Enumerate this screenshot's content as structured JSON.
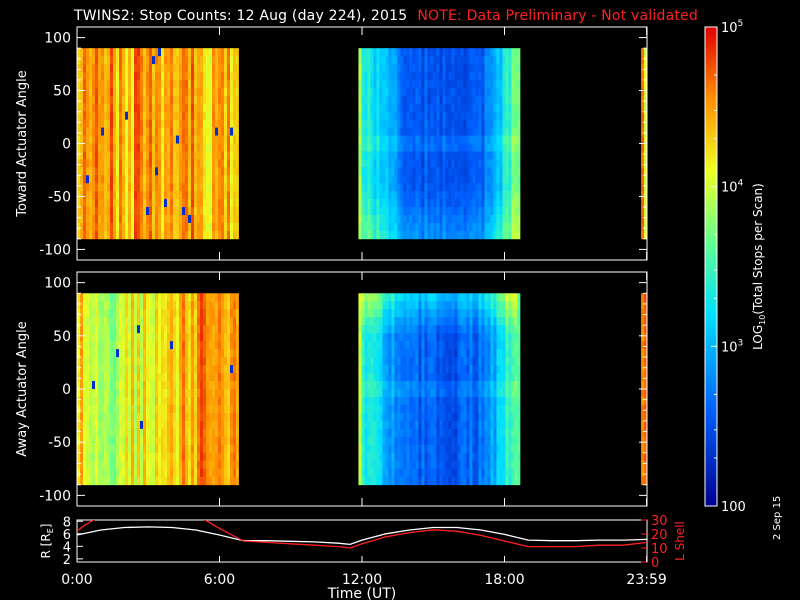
{
  "title": {
    "main": "TWINS2: Stop Counts: 12 Aug (day 224), 2015",
    "note": "NOTE: Data Preliminary - Not validated"
  },
  "side_stamp": "2 Sep 15",
  "colors": {
    "background": "#000000",
    "axis": "#ffffff",
    "note": "#ff2020",
    "r_trace": "#ffffff",
    "l_shell_trace": "#ff2020"
  },
  "chart_data": [
    {
      "type": "heatmap",
      "panel": "toward",
      "ylabel": "Toward Actuator Angle",
      "ylim": [
        -110,
        110
      ],
      "yticks": [
        100,
        50,
        0,
        -50,
        -100
      ],
      "ytick_labels": [
        "100",
        "50",
        "0",
        "-50",
        "-100"
      ],
      "xlim_hours": [
        0,
        24
      ],
      "data_segments_hours": [
        [
          0.0,
          6.8
        ],
        [
          11.85,
          18.65
        ],
        [
          23.75,
          24.0
        ]
      ],
      "angle_range": [
        -90,
        90
      ],
      "profile_level": [
        [
          0.0,
          0.82
        ],
        [
          0.5,
          0.8
        ],
        [
          1.0,
          0.84
        ],
        [
          1.5,
          0.81
        ],
        [
          2.0,
          0.78
        ],
        [
          2.5,
          0.83
        ],
        [
          3.0,
          0.8
        ],
        [
          3.5,
          0.82
        ],
        [
          4.0,
          0.79
        ],
        [
          4.5,
          0.83
        ],
        [
          5.0,
          0.8
        ],
        [
          5.5,
          0.78
        ],
        [
          6.0,
          0.8
        ],
        [
          6.5,
          0.76
        ],
        [
          6.8,
          0.72
        ],
        [
          11.85,
          0.6
        ],
        [
          12.0,
          0.45
        ],
        [
          12.5,
          0.4
        ],
        [
          13.0,
          0.32
        ],
        [
          13.5,
          0.25
        ],
        [
          14.0,
          0.2
        ],
        [
          15.0,
          0.16
        ],
        [
          16.0,
          0.16
        ],
        [
          17.0,
          0.2
        ],
        [
          17.5,
          0.3
        ],
        [
          18.0,
          0.45
        ],
        [
          18.65,
          0.62
        ],
        [
          23.75,
          0.8
        ],
        [
          24.0,
          0.78
        ]
      ]
    },
    {
      "type": "heatmap",
      "panel": "away",
      "ylabel": "Away Actuator Angle",
      "ylim": [
        -110,
        110
      ],
      "yticks": [
        100,
        50,
        0,
        -50,
        -100
      ],
      "ytick_labels": [
        "100",
        "50",
        "0",
        "-50",
        "-100"
      ],
      "xlim_hours": [
        0,
        24
      ],
      "data_segments_hours": [
        [
          0.0,
          6.8
        ],
        [
          11.85,
          18.65
        ],
        [
          23.75,
          24.0
        ]
      ],
      "angle_range": [
        -90,
        90
      ],
      "profile_level": [
        [
          0.0,
          0.78
        ],
        [
          0.5,
          0.74
        ],
        [
          1.0,
          0.7
        ],
        [
          1.5,
          0.66
        ],
        [
          2.0,
          0.68
        ],
        [
          2.5,
          0.72
        ],
        [
          3.0,
          0.74
        ],
        [
          3.5,
          0.76
        ],
        [
          4.0,
          0.8
        ],
        [
          4.5,
          0.82
        ],
        [
          5.0,
          0.84
        ],
        [
          5.5,
          0.82
        ],
        [
          6.0,
          0.8
        ],
        [
          6.5,
          0.78
        ],
        [
          6.8,
          0.74
        ],
        [
          11.85,
          0.62
        ],
        [
          12.0,
          0.48
        ],
        [
          12.5,
          0.4
        ],
        [
          13.0,
          0.32
        ],
        [
          13.5,
          0.26
        ],
        [
          14.0,
          0.22
        ],
        [
          15.0,
          0.18
        ],
        [
          16.0,
          0.18
        ],
        [
          17.0,
          0.22
        ],
        [
          17.5,
          0.32
        ],
        [
          18.0,
          0.46
        ],
        [
          18.65,
          0.64
        ],
        [
          23.75,
          0.82
        ],
        [
          24.0,
          0.8
        ]
      ]
    },
    {
      "type": "line",
      "panel": "orbit",
      "xlabel": "Time (UT)",
      "xticks_hours": [
        0,
        6,
        12,
        18,
        23.983
      ],
      "xtick_labels": [
        "0:00",
        "6:00",
        "12:00",
        "18:00",
        "23:59"
      ],
      "ylabel_left": "R [R_E]",
      "ylabel_left_base": "R [R",
      "ylabel_left_sub": "E",
      "ylabel_left_close": "]",
      "ylim_left": [
        1.5,
        8.2
      ],
      "yticks_left": [
        2,
        4,
        6,
        8
      ],
      "ylabel_right": "L Shell",
      "ylim_right": [
        0,
        30
      ],
      "yticks_right": [
        0,
        10,
        20,
        30
      ],
      "series": [
        {
          "axis": "left",
          "x": [
            0.0,
            1.0,
            2.0,
            3.0,
            4.0,
            5.0,
            6.0,
            7.0,
            8.0,
            9.0,
            10.0,
            11.0,
            11.5,
            12.0,
            13.0,
            14.0,
            15.0,
            16.0,
            17.0,
            18.0,
            19.0,
            20.0,
            21.0,
            22.0,
            23.0,
            24.0
          ],
          "y": [
            5.8,
            6.6,
            7.0,
            7.1,
            7.0,
            6.6,
            5.8,
            4.9,
            4.9,
            4.8,
            4.7,
            4.5,
            4.3,
            5.0,
            6.0,
            6.6,
            7.0,
            7.0,
            6.6,
            5.9,
            5.0,
            4.9,
            4.9,
            5.0,
            5.0,
            5.1
          ]
        },
        {
          "axis": "right",
          "x": [
            0.0,
            0.3,
            0.7,
            1.0,
            5.2,
            6.0,
            7.0,
            8.0,
            9.0,
            10.0,
            11.0,
            11.5,
            12.0,
            13.0,
            14.0,
            15.0,
            16.0,
            17.0,
            18.0,
            19.0,
            20.0,
            21.0,
            22.0,
            23.0,
            24.0
          ],
          "y": [
            22,
            26,
            30,
            32,
            32,
            24,
            15,
            14,
            13,
            12,
            11,
            10,
            13,
            18,
            21,
            23,
            22,
            19,
            15,
            11,
            11,
            11,
            12,
            12,
            14
          ]
        }
      ]
    },
    {
      "type": "colorbar",
      "label": "LOG10(Total Stops per Scan)",
      "label_base": "LOG",
      "label_sub": "10",
      "label_rest": "(Total Stops per Scan)",
      "range": [
        100,
        100000
      ],
      "ticks": [
        {
          "value": 100000,
          "base": "10",
          "exp": "5"
        },
        {
          "value": 10000,
          "base": "10",
          "exp": "4"
        },
        {
          "value": 1000,
          "base": "10",
          "exp": "3"
        },
        {
          "value": 100,
          "text": "100"
        }
      ]
    }
  ]
}
